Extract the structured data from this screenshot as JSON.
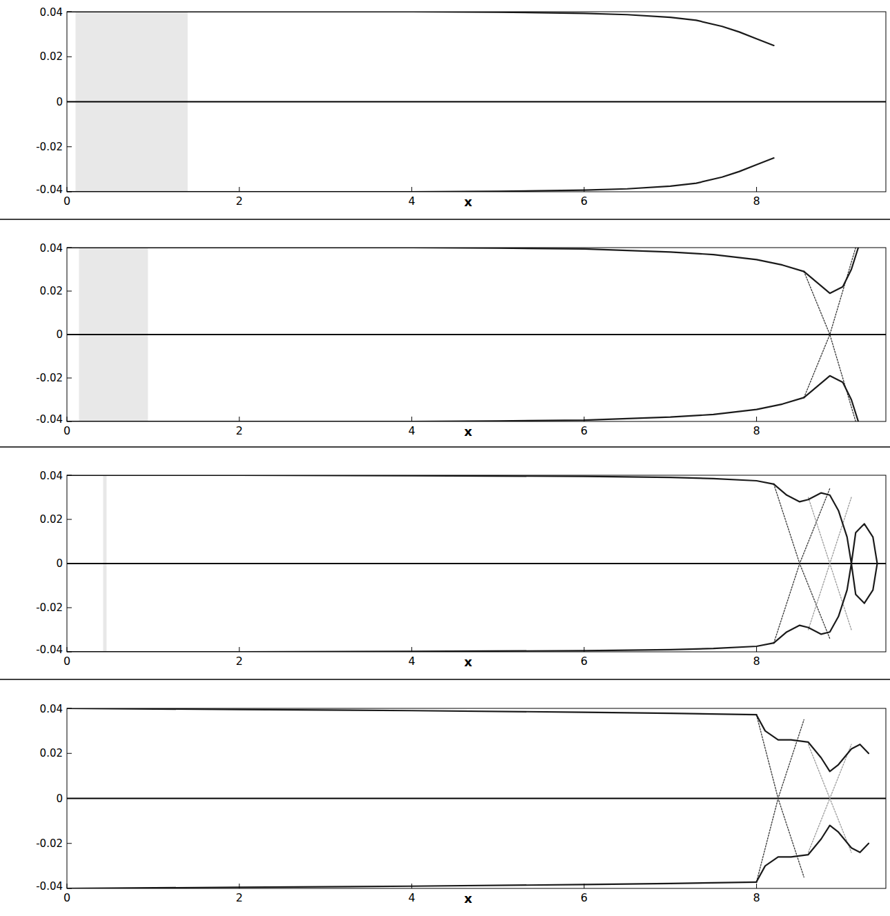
{
  "chart_data": [
    {
      "type": "line",
      "x_label": "x",
      "xlim": [
        0,
        9.5
      ],
      "xticks": [
        0,
        2,
        4,
        6,
        8
      ],
      "ylim": [
        -0.04,
        0.04
      ],
      "yticks": [
        -0.04,
        -0.02,
        0,
        0.02,
        0.04
      ],
      "series": [
        {
          "type": "band",
          "color": "#e8e8e8",
          "x": [
            0.1,
            1.4
          ],
          "values": [
            0.04,
            0.04
          ],
          "lower": [
            -0.04,
            -0.04
          ]
        },
        {
          "type": "line",
          "color": "#000000",
          "line_style": "solid",
          "x": [
            0,
            9.5
          ],
          "values": [
            0,
            0
          ]
        },
        {
          "type": "line",
          "color": "#1a1a1a",
          "line_style": "solid",
          "x": [
            0,
            2,
            4,
            5,
            6,
            6.5,
            7,
            7.3,
            7.6,
            7.8,
            8,
            8.2
          ],
          "values": [
            0.04,
            0.04,
            0.04,
            0.0398,
            0.0393,
            0.0387,
            0.0375,
            0.0362,
            0.0335,
            0.031,
            0.028,
            0.025
          ]
        },
        {
          "type": "line",
          "color": "#1a1a1a",
          "line_style": "solid",
          "x": [
            0,
            2,
            4,
            5,
            6,
            6.5,
            7,
            7.3,
            7.6,
            7.8,
            8,
            8.2
          ],
          "values": [
            -0.04,
            -0.04,
            -0.04,
            -0.0398,
            -0.0393,
            -0.0387,
            -0.0375,
            -0.0362,
            -0.0335,
            -0.031,
            -0.028,
            -0.025
          ]
        }
      ]
    },
    {
      "type": "line",
      "x_label": "x",
      "xlim": [
        0,
        9.5
      ],
      "xticks": [
        0,
        2,
        4,
        6,
        8
      ],
      "ylim": [
        -0.04,
        0.04
      ],
      "yticks": [
        -0.04,
        -0.02,
        0,
        0.02,
        0.04
      ],
      "series": [
        {
          "type": "band",
          "color": "#e8e8e8",
          "x": [
            0.14,
            0.94
          ],
          "values": [
            0.04,
            0.04
          ],
          "lower": [
            -0.04,
            -0.04
          ]
        },
        {
          "type": "line",
          "color": "#000000",
          "line_style": "solid",
          "x": [
            0,
            9.5
          ],
          "values": [
            0,
            0
          ]
        },
        {
          "type": "line",
          "color": "#1a1a1a",
          "line_style": "solid",
          "x": [
            0,
            2,
            4,
            5,
            6,
            7,
            7.5,
            8,
            8.3,
            8.55
          ],
          "values": [
            0.04,
            0.04,
            0.04,
            0.0398,
            0.0394,
            0.038,
            0.0368,
            0.0345,
            0.032,
            0.029
          ]
        },
        {
          "type": "line",
          "color": "#1a1a1a",
          "line_style": "solid",
          "x": [
            0,
            2,
            4,
            5,
            6,
            7,
            7.5,
            8,
            8.3,
            8.55
          ],
          "values": [
            -0.04,
            -0.04,
            -0.04,
            -0.0398,
            -0.0394,
            -0.038,
            -0.0368,
            -0.0345,
            -0.032,
            -0.029
          ]
        },
        {
          "type": "line",
          "color": "#333333",
          "line_style": "dotted",
          "x": [
            8.55,
            8.85,
            9.15
          ],
          "values": [
            0.029,
            0,
            -0.04
          ]
        },
        {
          "type": "line",
          "color": "#333333",
          "line_style": "dotted",
          "x": [
            8.55,
            8.85,
            9.15
          ],
          "values": [
            -0.029,
            0,
            0.04
          ]
        },
        {
          "type": "line",
          "color": "#1a1a1a",
          "line_style": "solid",
          "x": [
            8.55,
            8.7,
            8.85,
            9.0,
            9.1,
            9.18
          ],
          "values": [
            0.029,
            0.024,
            0.019,
            0.022,
            0.03,
            0.04
          ]
        },
        {
          "type": "line",
          "color": "#1a1a1a",
          "line_style": "solid",
          "x": [
            8.55,
            8.7,
            8.85,
            9.0,
            9.1,
            9.18
          ],
          "values": [
            -0.029,
            -0.024,
            -0.019,
            -0.022,
            -0.03,
            -0.04
          ]
        }
      ]
    },
    {
      "type": "line",
      "x_label": "x",
      "xlim": [
        0,
        9.5
      ],
      "xticks": [
        0,
        2,
        4,
        6,
        8
      ],
      "ylim": [
        -0.04,
        0.04
      ],
      "yticks": [
        -0.04,
        -0.02,
        0,
        0.02,
        0.04
      ],
      "series": [
        {
          "type": "band",
          "color": "#e8e8e8",
          "x": [
            0.42,
            0.46
          ],
          "values": [
            0.04,
            0.04
          ],
          "lower": [
            -0.04,
            -0.04
          ]
        },
        {
          "type": "line",
          "color": "#000000",
          "line_style": "solid",
          "x": [
            0,
            9.5
          ],
          "values": [
            0,
            0
          ]
        },
        {
          "type": "line",
          "color": "#1a1a1a",
          "line_style": "solid",
          "x": [
            0,
            2,
            4,
            6,
            7,
            7.5,
            8,
            8.2
          ],
          "values": [
            0.04,
            0.04,
            0.0398,
            0.0395,
            0.039,
            0.0385,
            0.0375,
            0.036
          ]
        },
        {
          "type": "line",
          "color": "#1a1a1a",
          "line_style": "solid",
          "x": [
            0,
            2,
            4,
            6,
            7,
            7.5,
            8,
            8.2
          ],
          "values": [
            -0.04,
            -0.04,
            -0.0398,
            -0.0395,
            -0.039,
            -0.0385,
            -0.0375,
            -0.036
          ]
        },
        {
          "type": "line",
          "color": "#333333",
          "line_style": "dotted",
          "x": [
            8.2,
            8.5,
            8.85
          ],
          "values": [
            0.036,
            0,
            -0.034
          ]
        },
        {
          "type": "line",
          "color": "#333333",
          "line_style": "dotted",
          "x": [
            8.2,
            8.5,
            8.85
          ],
          "values": [
            -0.036,
            0,
            0.034
          ]
        },
        {
          "type": "line",
          "color": "#999999",
          "line_style": "dotted",
          "x": [
            8.6,
            8.85,
            9.1
          ],
          "values": [
            0.03,
            0,
            -0.03
          ]
        },
        {
          "type": "line",
          "color": "#999999",
          "line_style": "dotted",
          "x": [
            8.6,
            8.85,
            9.1
          ],
          "values": [
            -0.03,
            0,
            0.03
          ]
        },
        {
          "type": "line",
          "color": "#1a1a1a",
          "line_style": "solid",
          "x": [
            8.2,
            8.35,
            8.5,
            8.6,
            8.75,
            8.85,
            8.95,
            9.05,
            9.1
          ],
          "values": [
            0.036,
            0.031,
            0.028,
            0.029,
            0.032,
            0.031,
            0.024,
            0.012,
            0
          ]
        },
        {
          "type": "line",
          "color": "#1a1a1a",
          "line_style": "solid",
          "x": [
            8.2,
            8.35,
            8.5,
            8.6,
            8.75,
            8.85,
            8.95,
            9.05,
            9.1
          ],
          "values": [
            -0.036,
            -0.031,
            -0.028,
            -0.029,
            -0.032,
            -0.031,
            -0.024,
            -0.012,
            0
          ]
        },
        {
          "type": "line",
          "color": "#1a1a1a",
          "line_style": "solid",
          "x": [
            9.1,
            9.15,
            9.25,
            9.35,
            9.4,
            9.35,
            9.25,
            9.15,
            9.1
          ],
          "values": [
            0,
            0.014,
            0.018,
            0.012,
            0,
            -0.012,
            -0.018,
            -0.014,
            0
          ]
        }
      ]
    },
    {
      "type": "line",
      "x_label": "x",
      "xlim": [
        0,
        9.5
      ],
      "xticks": [
        0,
        2,
        4,
        6,
        8
      ],
      "ylim": [
        -0.04,
        0.04
      ],
      "yticks": [
        -0.04,
        -0.02,
        0,
        0.02,
        0.04
      ],
      "series": [
        {
          "type": "line",
          "color": "#000000",
          "line_style": "solid",
          "x": [
            0,
            9.5
          ],
          "values": [
            0,
            0
          ]
        },
        {
          "type": "line",
          "color": "#1a1a1a",
          "line_style": "solid",
          "x": [
            0,
            2,
            4,
            6,
            7,
            8
          ],
          "values": [
            0.04,
            0.0395,
            0.039,
            0.0383,
            0.0378,
            0.0372
          ]
        },
        {
          "type": "line",
          "color": "#1a1a1a",
          "line_style": "solid",
          "x": [
            0,
            2,
            4,
            6,
            7,
            8
          ],
          "values": [
            -0.04,
            -0.0395,
            -0.039,
            -0.0383,
            -0.0378,
            -0.0372
          ]
        },
        {
          "type": "line",
          "color": "#333333",
          "line_style": "dotted",
          "x": [
            8.0,
            8.25,
            8.55
          ],
          "values": [
            0.037,
            0,
            -0.035
          ]
        },
        {
          "type": "line",
          "color": "#333333",
          "line_style": "dotted",
          "x": [
            8.0,
            8.25,
            8.55
          ],
          "values": [
            -0.037,
            0,
            0.035
          ]
        },
        {
          "type": "line",
          "color": "#999999",
          "line_style": "dotted",
          "x": [
            8.6,
            8.85,
            9.1
          ],
          "values": [
            0.024,
            0,
            -0.024
          ]
        },
        {
          "type": "line",
          "color": "#999999",
          "line_style": "dotted",
          "x": [
            8.6,
            8.85,
            9.1
          ],
          "values": [
            -0.024,
            0,
            0.024
          ]
        },
        {
          "type": "line",
          "color": "#1a1a1a",
          "line_style": "solid",
          "x": [
            8.0,
            8.1,
            8.25,
            8.4,
            8.6,
            8.75,
            8.85,
            8.95,
            9.1,
            9.2,
            9.3
          ],
          "values": [
            0.037,
            0.03,
            0.026,
            0.026,
            0.025,
            0.018,
            0.012,
            0.015,
            0.022,
            0.024,
            0.02
          ]
        },
        {
          "type": "line",
          "color": "#1a1a1a",
          "line_style": "solid",
          "x": [
            8.0,
            8.1,
            8.25,
            8.4,
            8.6,
            8.75,
            8.85,
            8.95,
            9.1,
            9.2,
            9.3
          ],
          "values": [
            -0.037,
            -0.03,
            -0.026,
            -0.026,
            -0.025,
            -0.018,
            -0.012,
            -0.015,
            -0.022,
            -0.024,
            -0.02
          ]
        }
      ]
    }
  ]
}
